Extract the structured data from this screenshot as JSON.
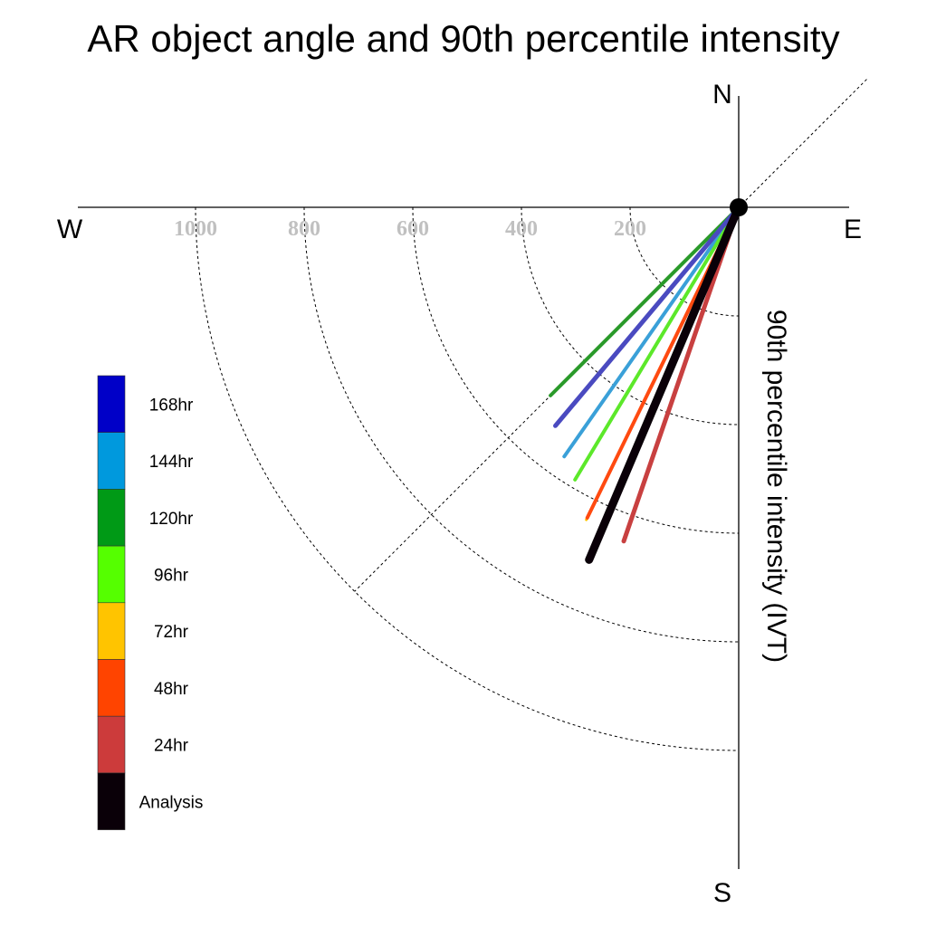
{
  "chart_data": {
    "type": "polar-vector",
    "title": "AR object angle and 90th percentile intensity",
    "ylabel": "90th percentile intensity (IVT)",
    "compass": {
      "north": "N",
      "south": "S",
      "east": "E",
      "west": "W"
    },
    "radial_ticks": [
      200,
      400,
      600,
      800,
      1000
    ],
    "radial_max": 1000,
    "grid": true,
    "legend_position": "left",
    "series": [
      {
        "name": "168hr",
        "color": "#0000c8",
        "line_color": "#4a4ac0",
        "angle_deg": 220,
        "intensity": 525,
        "width": 5
      },
      {
        "name": "144hr",
        "color": "#0099dd",
        "line_color": "#3aa0d8",
        "angle_deg": 215,
        "intensity": 560,
        "width": 4
      },
      {
        "name": "120hr",
        "color": "#009a16",
        "line_color": "#2a9a2a",
        "angle_deg": 225,
        "intensity": 490,
        "width": 4
      },
      {
        "name": "96hr",
        "color": "#55ff00",
        "line_color": "#5ce82a",
        "angle_deg": 211,
        "intensity": 585,
        "width": 4
      },
      {
        "name": "72hr",
        "color": "#ffc400",
        "line_color": "#ffc400",
        "angle_deg": 206,
        "intensity": 640,
        "width": 3
      },
      {
        "name": "48hr",
        "color": "#ff4400",
        "line_color": "#ff4a10",
        "angle_deg": 206,
        "intensity": 636,
        "width": 4
      },
      {
        "name": "24hr",
        "color": "#cc3b3b",
        "line_color": "#c84040",
        "angle_deg": 199,
        "intensity": 650,
        "width": 5
      },
      {
        "name": "Analysis",
        "color": "#0a0008",
        "line_color": "#0a0008",
        "angle_deg": 203,
        "intensity": 705,
        "width": 9
      }
    ]
  }
}
